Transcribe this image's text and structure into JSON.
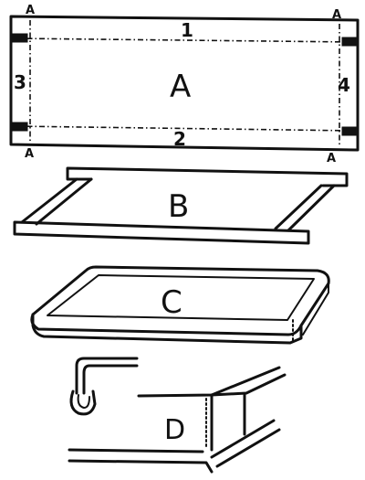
{
  "labels": {
    "piece_a": "A",
    "piece_b": "B",
    "piece_c": "C",
    "piece_d": "D",
    "corner_a": "A",
    "edge_1": "1",
    "edge_2": "2",
    "edge_3": "3",
    "edge_4": "4"
  }
}
